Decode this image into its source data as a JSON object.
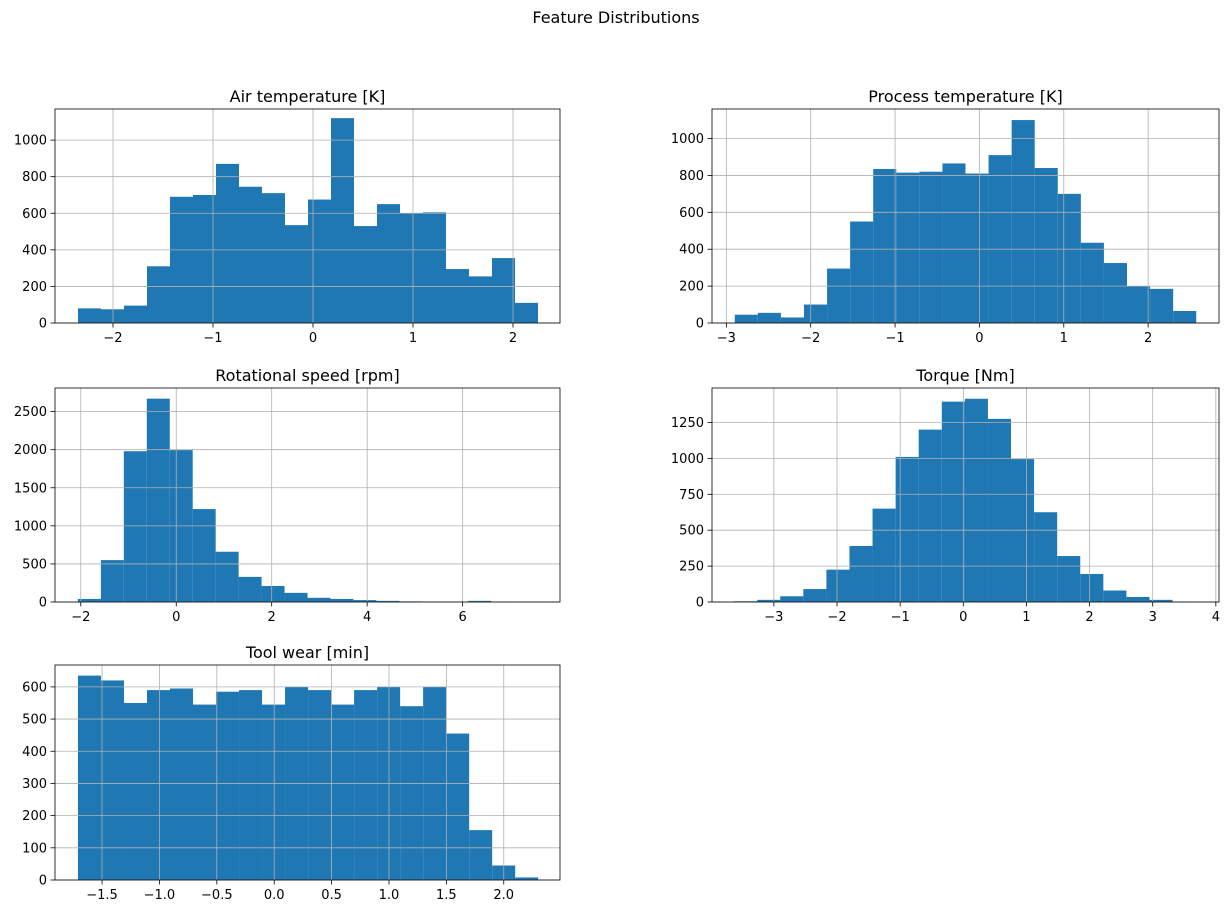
{
  "figure": {
    "suptitle": "Feature Distributions"
  },
  "style": {
    "bar_color": "#1f77b4",
    "grid_color": "#b0b0b0",
    "axis_color": "#000000"
  },
  "chart_data": [
    {
      "type": "bar",
      "title": "Air temperature [K]",
      "xlabel": "",
      "ylabel": "",
      "grid": true,
      "xlim": [
        -2.58,
        2.47
      ],
      "ylim": [
        0,
        1170
      ],
      "xticks": [
        -2,
        -1,
        0,
        1,
        2
      ],
      "xtick_labels": [
        "−2",
        "−1",
        "0",
        "1",
        "2"
      ],
      "yticks": [
        0,
        200,
        400,
        600,
        800,
        1000
      ],
      "ytick_labels": [
        "0",
        "200",
        "400",
        "600",
        "800",
        "1000"
      ],
      "bin_edges": [
        -2.35,
        -2.12,
        -1.89,
        -1.66,
        -1.43,
        -1.2,
        -0.97,
        -0.74,
        -0.51,
        -0.28,
        -0.05,
        0.18,
        0.41,
        0.64,
        0.87,
        1.1,
        1.33,
        1.56,
        1.79,
        2.02,
        2.25
      ],
      "values": [
        80,
        75,
        95,
        310,
        690,
        700,
        870,
        745,
        710,
        535,
        675,
        1120,
        530,
        650,
        600,
        605,
        295,
        255,
        355,
        110
      ]
    },
    {
      "type": "bar",
      "title": "Process temperature [K]",
      "xlabel": "",
      "ylabel": "",
      "grid": true,
      "xlim": [
        -3.17,
        2.84
      ],
      "ylim": [
        0,
        1160
      ],
      "xticks": [
        -3,
        -2,
        -1,
        0,
        1,
        2
      ],
      "xtick_labels": [
        "−3",
        "−2",
        "−1",
        "0",
        "1",
        "2"
      ],
      "yticks": [
        0,
        200,
        400,
        600,
        800,
        1000
      ],
      "ytick_labels": [
        "0",
        "200",
        "400",
        "600",
        "800",
        "1000"
      ],
      "bin_edges": [
        -2.9,
        -2.6265,
        -2.353,
        -2.0795,
        -1.806,
        -1.5325,
        -1.259,
        -0.9855,
        -0.712,
        -0.4385,
        -0.165,
        0.1085,
        0.382,
        0.6555,
        0.929,
        1.2025,
        1.476,
        1.7495,
        2.023,
        2.2965,
        2.57
      ],
      "values": [
        45,
        55,
        30,
        100,
        295,
        550,
        835,
        815,
        820,
        865,
        810,
        910,
        1100,
        840,
        700,
        435,
        325,
        200,
        185,
        65
      ]
    },
    {
      "type": "bar",
      "title": "Rotational speed [rpm]",
      "xlabel": "",
      "ylabel": "",
      "grid": true,
      "xlim": [
        -2.54,
        8.04
      ],
      "ylim": [
        0,
        2810
      ],
      "xticks": [
        -2,
        0,
        2,
        4,
        6
      ],
      "xtick_labels": [
        "−2",
        "0",
        "2",
        "4",
        "6"
      ],
      "yticks": [
        0,
        500,
        1000,
        1500,
        2000,
        2500
      ],
      "ytick_labels": [
        "0",
        "500",
        "1000",
        "1500",
        "2000",
        "2500"
      ],
      "bin_edges": [
        -2.06,
        -1.579,
        -1.098,
        -0.617,
        -0.136,
        0.345,
        0.826,
        1.307,
        1.788,
        2.269,
        2.75,
        3.231,
        3.712,
        4.193,
        4.674,
        5.155,
        5.636,
        6.117,
        6.598,
        7.079,
        7.56
      ],
      "values": [
        40,
        550,
        1980,
        2670,
        1995,
        1220,
        660,
        330,
        210,
        120,
        55,
        40,
        25,
        15,
        8,
        5,
        4,
        15,
        3,
        2
      ]
    },
    {
      "type": "bar",
      "title": "Torque [Nm]",
      "xlabel": "",
      "ylabel": "",
      "grid": true,
      "xlim": [
        -3.98,
        4.05
      ],
      "ylim": [
        0,
        1490
      ],
      "xticks": [
        -3,
        -2,
        -1,
        0,
        1,
        2,
        3,
        4
      ],
      "xtick_labels": [
        "−3",
        "−2",
        "−1",
        "0",
        "1",
        "2",
        "3",
        "4"
      ],
      "yticks": [
        0,
        250,
        500,
        750,
        1000,
        1250
      ],
      "ytick_labels": [
        "0",
        "250",
        "500",
        "750",
        "1000",
        "1250"
      ],
      "bin_edges": [
        -3.63,
        -3.2645,
        -2.899,
        -2.5335,
        -2.168,
        -1.8025,
        -1.437,
        -1.0715,
        -0.706,
        -0.3405,
        0.025,
        0.3905,
        0.756,
        1.1215,
        1.487,
        1.8525,
        2.218,
        2.5835,
        2.949,
        3.3145,
        3.68
      ],
      "values": [
        5,
        15,
        40,
        90,
        225,
        390,
        650,
        1010,
        1200,
        1395,
        1415,
        1275,
        995,
        625,
        320,
        195,
        80,
        35,
        15,
        3
      ]
    },
    {
      "type": "bar",
      "title": "Tool wear [min]",
      "xlabel": "",
      "ylabel": "",
      "grid": true,
      "xlim": [
        -1.91,
        2.49
      ],
      "ylim": [
        0,
        668
      ],
      "xticks": [
        -1.5,
        -1.0,
        -0.5,
        0.0,
        0.5,
        1.0,
        1.5,
        2.0
      ],
      "xtick_labels": [
        "−1.5",
        "−1.0",
        "−0.5",
        "0.0",
        "0.5",
        "1.0",
        "1.5",
        "2.0"
      ],
      "yticks": [
        0,
        100,
        200,
        300,
        400,
        500,
        600
      ],
      "ytick_labels": [
        "0",
        "100",
        "200",
        "300",
        "400",
        "500",
        "600"
      ],
      "bin_edges": [
        -1.71,
        -1.5095,
        -1.309,
        -1.1085,
        -0.908,
        -0.7075,
        -0.507,
        -0.3065,
        -0.106,
        0.0945,
        0.295,
        0.4955,
        0.696,
        0.8965,
        1.097,
        1.2975,
        1.498,
        1.6985,
        1.899,
        2.0995,
        2.3
      ],
      "values": [
        635,
        620,
        550,
        590,
        595,
        545,
        585,
        590,
        545,
        600,
        590,
        545,
        590,
        600,
        540,
        600,
        455,
        155,
        45,
        8
      ]
    }
  ]
}
